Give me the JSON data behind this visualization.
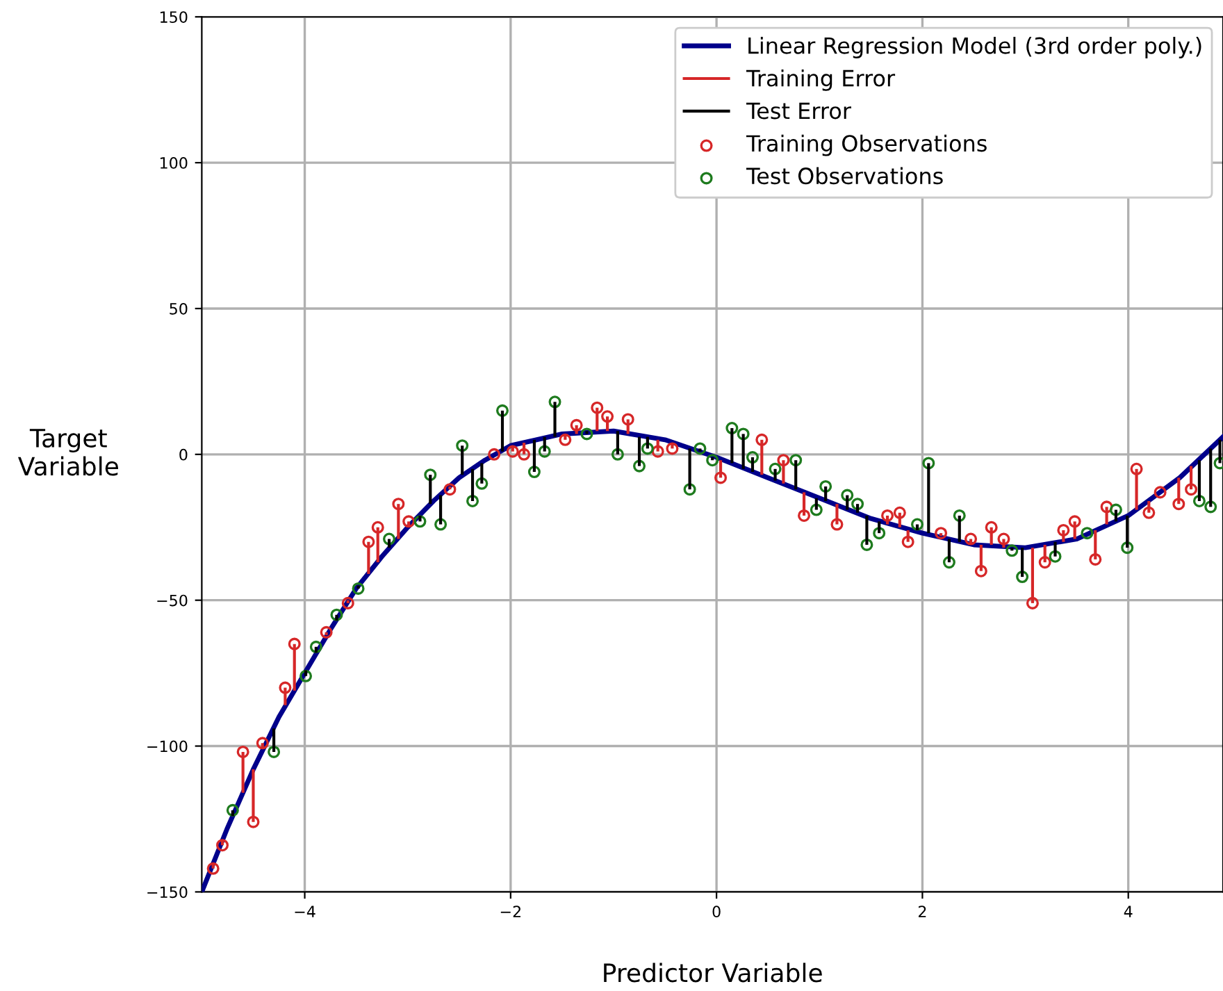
{
  "chart_data": {
    "type": "scatter",
    "xlabel": "Predictor Variable",
    "ylabel": "Target\nVariable",
    "xlim": [
      -5,
      4.92
    ],
    "ylim": [
      -150,
      150
    ],
    "xticks": [
      {
        "value": -4,
        "label": "−4"
      },
      {
        "value": -2,
        "label": "−2"
      },
      0,
      2,
      4
    ],
    "yticks": [
      {
        "value": -150,
        "label": "−150"
      },
      {
        "value": -100,
        "label": "−100"
      },
      {
        "value": -50,
        "label": "−50"
      },
      0,
      50,
      100,
      150
    ],
    "grid": true,
    "legend": "top right",
    "series": [
      {
        "name": "Linear Regression Model (3rd order poly.)",
        "type": "line",
        "color": "#00008b",
        "line_style": "solid",
        "x": [
          -5,
          -4.75,
          -4.5,
          -4.25,
          -4,
          -3.75,
          -3.5,
          -3.25,
          -3,
          -2.75,
          -2.5,
          -2.25,
          -2,
          -1.5,
          -1,
          -0.5,
          0,
          0.5,
          1,
          1.5,
          2,
          2.5,
          3,
          3.5,
          4,
          4.5,
          4.92
        ],
        "values": [
          -150,
          -128,
          -108,
          -90,
          -75,
          -60,
          -46,
          -35,
          -25,
          -16,
          -8,
          -2,
          3,
          7,
          8,
          5,
          -1,
          -8,
          -15,
          -22,
          -27,
          -31,
          -32,
          -29,
          -21,
          -8,
          6
        ]
      },
      {
        "name": "Training Error",
        "type": "line",
        "color": "#d62728",
        "line_style": "solid"
      },
      {
        "name": "Test Error",
        "type": "line",
        "color": "#000000",
        "line_style": "solid"
      },
      {
        "name": "Training Observations",
        "color": "#d62728",
        "marker": "circle",
        "x": [
          -4.89,
          -4.8,
          -4.6,
          -4.5,
          -4.41,
          -4.19,
          -4.1,
          -3.79,
          -3.58,
          -3.38,
          -3.29,
          -3.09,
          -2.99,
          -2.59,
          -2.16,
          -1.98,
          -1.87,
          -1.47,
          -1.36,
          -1.16,
          -1.06,
          -0.86,
          -0.57,
          -0.43,
          0.04,
          0.44,
          0.65,
          0.85,
          1.17,
          1.66,
          1.78,
          1.86,
          2.18,
          2.47,
          2.57,
          2.67,
          2.79,
          3.07,
          3.19,
          3.37,
          3.48,
          3.68,
          3.79,
          4.08,
          4.2,
          4.31,
          4.49,
          4.61
        ],
        "values": [
          -142,
          -134,
          -102,
          -126,
          -99,
          -80,
          -65,
          -61,
          -51,
          -30,
          -25,
          -17,
          -23,
          -12,
          0,
          1,
          0,
          5,
          10,
          16,
          13,
          12,
          1,
          2,
          -8,
          5,
          -2,
          -21,
          -24,
          -21,
          -20,
          -30,
          -27,
          -29,
          -40,
          -25,
          -29,
          -51,
          -37,
          -26,
          -23,
          -36,
          -18,
          -5,
          -20,
          -13,
          -17,
          -12
        ],
        "errors": [
          [
            -142,
            -140
          ],
          [
            -134,
            -132
          ],
          [
            -116,
            -102
          ],
          [
            -126,
            -108
          ],
          [
            -101,
            -99
          ],
          [
            -86,
            -80
          ],
          [
            -81,
            -65
          ],
          [
            -62,
            -61
          ],
          [
            -51,
            -50
          ],
          [
            -41,
            -30
          ],
          [
            -37,
            -25
          ],
          [
            -29,
            -17
          ],
          [
            -25,
            -23
          ],
          [
            -12,
            -11
          ],
          [
            0,
            0
          ],
          [
            1,
            3
          ],
          [
            0,
            4
          ],
          [
            5,
            7
          ],
          [
            7,
            10
          ],
          [
            8,
            16
          ],
          [
            8,
            13
          ],
          [
            7,
            12
          ],
          [
            1,
            5
          ],
          [
            2,
            4
          ],
          [
            -8,
            -2
          ],
          [
            -7,
            5
          ],
          [
            -10,
            -2
          ],
          [
            -21,
            -13
          ],
          [
            -24,
            -17
          ],
          [
            -24,
            -21
          ],
          [
            -25,
            -20
          ],
          [
            -30,
            -26
          ],
          [
            -28,
            -27
          ],
          [
            -31,
            -29
          ],
          [
            -40,
            -31
          ],
          [
            -31,
            -25
          ],
          [
            -32,
            -29
          ],
          [
            -51,
            -32
          ],
          [
            -37,
            -31
          ],
          [
            -30,
            -26
          ],
          [
            -29,
            -23
          ],
          [
            -36,
            -26
          ],
          [
            -24,
            -18
          ],
          [
            -19,
            -5
          ],
          [
            -20,
            -16
          ],
          [
            -13,
            -13
          ],
          [
            -17,
            -8
          ],
          [
            -12,
            -4
          ]
        ]
      },
      {
        "name": "Test Observations",
        "color": "#1e7b1e",
        "marker": "circle",
        "x": [
          -4.7,
          -4.3,
          -3.99,
          -3.89,
          -3.69,
          -3.48,
          -3.18,
          -2.88,
          -2.78,
          -2.68,
          -2.47,
          -2.37,
          -2.28,
          -2.08,
          -1.77,
          -1.67,
          -1.57,
          -1.26,
          -0.96,
          -0.75,
          -0.67,
          -0.26,
          -0.16,
          -0.04,
          0.15,
          0.26,
          0.35,
          0.57,
          0.77,
          0.97,
          1.06,
          1.27,
          1.37,
          1.46,
          1.58,
          1.95,
          2.06,
          2.26,
          2.36,
          2.87,
          2.97,
          3.29,
          3.6,
          3.88,
          3.99,
          4.69,
          4.8,
          4.89
        ],
        "values": [
          -122,
          -102,
          -76,
          -66,
          -55,
          -46,
          -29,
          -23,
          -7,
          -24,
          3,
          -16,
          -10,
          15,
          -6,
          1,
          18,
          7,
          0,
          -4,
          2,
          -12,
          2,
          -2,
          9,
          7,
          -1,
          -5,
          -2,
          -19,
          -11,
          -14,
          -17,
          -31,
          -27,
          -24,
          -3,
          -37,
          -21,
          -33,
          -42,
          -35,
          -27,
          -19,
          -32,
          -16,
          -18,
          -3
        ],
        "errors": [
          [
            -124,
            -122
          ],
          [
            -102,
            -94
          ],
          [
            -76,
            -74
          ],
          [
            -68,
            -66
          ],
          [
            -57,
            -55
          ],
          [
            -46,
            -45
          ],
          [
            -32,
            -29
          ],
          [
            -23,
            -21
          ],
          [
            -17,
            -7
          ],
          [
            -24,
            -14
          ],
          [
            -7,
            3
          ],
          [
            -16,
            -5
          ],
          [
            -10,
            -3
          ],
          [
            1,
            15
          ],
          [
            -6,
            5
          ],
          [
            1,
            6
          ],
          [
            6,
            18
          ],
          [
            7,
            8
          ],
          [
            0,
            8
          ],
          [
            -4,
            6
          ],
          [
            2,
            6
          ],
          [
            -12,
            2
          ],
          [
            1,
            2
          ],
          [
            -2,
            -1
          ],
          [
            -3,
            9
          ],
          [
            -5,
            7
          ],
          [
            -6,
            -1
          ],
          [
            -9,
            -5
          ],
          [
            -12,
            -2
          ],
          [
            -19,
            -15
          ],
          [
            -16,
            -11
          ],
          [
            -19,
            -14
          ],
          [
            -20,
            -17
          ],
          [
            -31,
            -21
          ],
          [
            -27,
            -23
          ],
          [
            -26,
            -24
          ],
          [
            -27,
            -3
          ],
          [
            -37,
            -29
          ],
          [
            -30,
            -21
          ],
          [
            -33,
            -32
          ],
          [
            -42,
            -32
          ],
          [
            -35,
            -30
          ],
          [
            -27,
            -27
          ],
          [
            -23,
            -19
          ],
          [
            -32,
            -21
          ],
          [
            -16,
            -2
          ],
          [
            -18,
            2
          ],
          [
            -3,
            5
          ]
        ]
      }
    ]
  }
}
